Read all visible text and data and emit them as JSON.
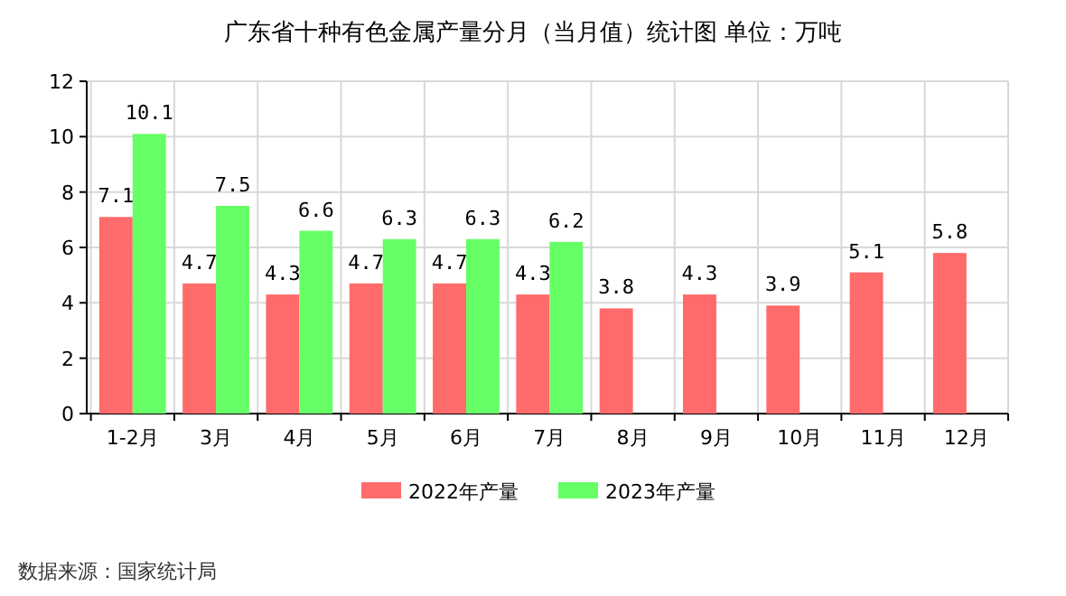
{
  "chart_data": {
    "type": "bar",
    "title": "广东省十种有色金属产量分月（当月值）统计图 单位：万吨",
    "categories": [
      "1-2月",
      "3月",
      "4月",
      "5月",
      "6月",
      "7月",
      "8月",
      "9月",
      "10月",
      "11月",
      "12月"
    ],
    "series": [
      {
        "name": "2022年产量",
        "color": "#ff6a6a",
        "values": [
          7.1,
          4.7,
          4.3,
          4.7,
          4.7,
          4.3,
          3.8,
          4.3,
          3.9,
          5.1,
          5.8
        ]
      },
      {
        "name": "2023年产量",
        "color": "#66ff66",
        "values": [
          10.1,
          7.5,
          6.6,
          6.3,
          6.3,
          6.2,
          null,
          null,
          null,
          null,
          null
        ]
      }
    ],
    "ylim": [
      0,
      12
    ],
    "yticks": [
      0,
      2,
      4,
      6,
      8,
      10,
      12
    ],
    "grid": true,
    "legend": "bottom",
    "data_labels": true,
    "annotations": [
      "数据来源：国家统计局"
    ]
  }
}
